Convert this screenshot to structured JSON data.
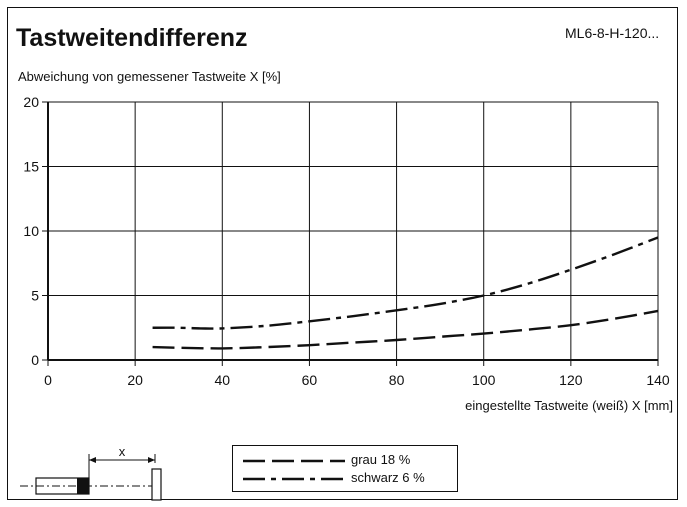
{
  "header": {
    "title": "Tastweitendifferenz",
    "model": "ML6-8-H-120..."
  },
  "chart_data": {
    "type": "line",
    "ylabel": "Abweichung von gemessener Tastweite X [%]",
    "xlabel": "eingestellte Tastweite (weiß) X [mm]",
    "xlim": [
      0,
      140
    ],
    "ylim": [
      0,
      20
    ],
    "xticks": [
      0,
      20,
      40,
      60,
      80,
      100,
      120,
      140
    ],
    "yticks": [
      0,
      5,
      10,
      15,
      20
    ],
    "grid": true,
    "legend_position": "bottom-center",
    "series": [
      {
        "name": "grau 18 %",
        "style": "dashed",
        "points": [
          [
            24,
            1.0
          ],
          [
            30,
            0.95
          ],
          [
            40,
            0.9
          ],
          [
            50,
            1.0
          ],
          [
            60,
            1.15
          ],
          [
            70,
            1.35
          ],
          [
            80,
            1.55
          ],
          [
            90,
            1.8
          ],
          [
            100,
            2.05
          ],
          [
            110,
            2.35
          ],
          [
            120,
            2.7
          ],
          [
            130,
            3.2
          ],
          [
            140,
            3.8
          ]
        ]
      },
      {
        "name": "schwarz 6 %",
        "style": "dash-dot",
        "points": [
          [
            24,
            2.5
          ],
          [
            30,
            2.5
          ],
          [
            35,
            2.45
          ],
          [
            40,
            2.45
          ],
          [
            50,
            2.65
          ],
          [
            60,
            3.0
          ],
          [
            70,
            3.4
          ],
          [
            80,
            3.85
          ],
          [
            90,
            4.35
          ],
          [
            100,
            5.0
          ],
          [
            110,
            5.9
          ],
          [
            120,
            7.0
          ],
          [
            130,
            8.2
          ],
          [
            140,
            9.5
          ]
        ]
      }
    ]
  },
  "diagram": {
    "distance_label": "x"
  }
}
